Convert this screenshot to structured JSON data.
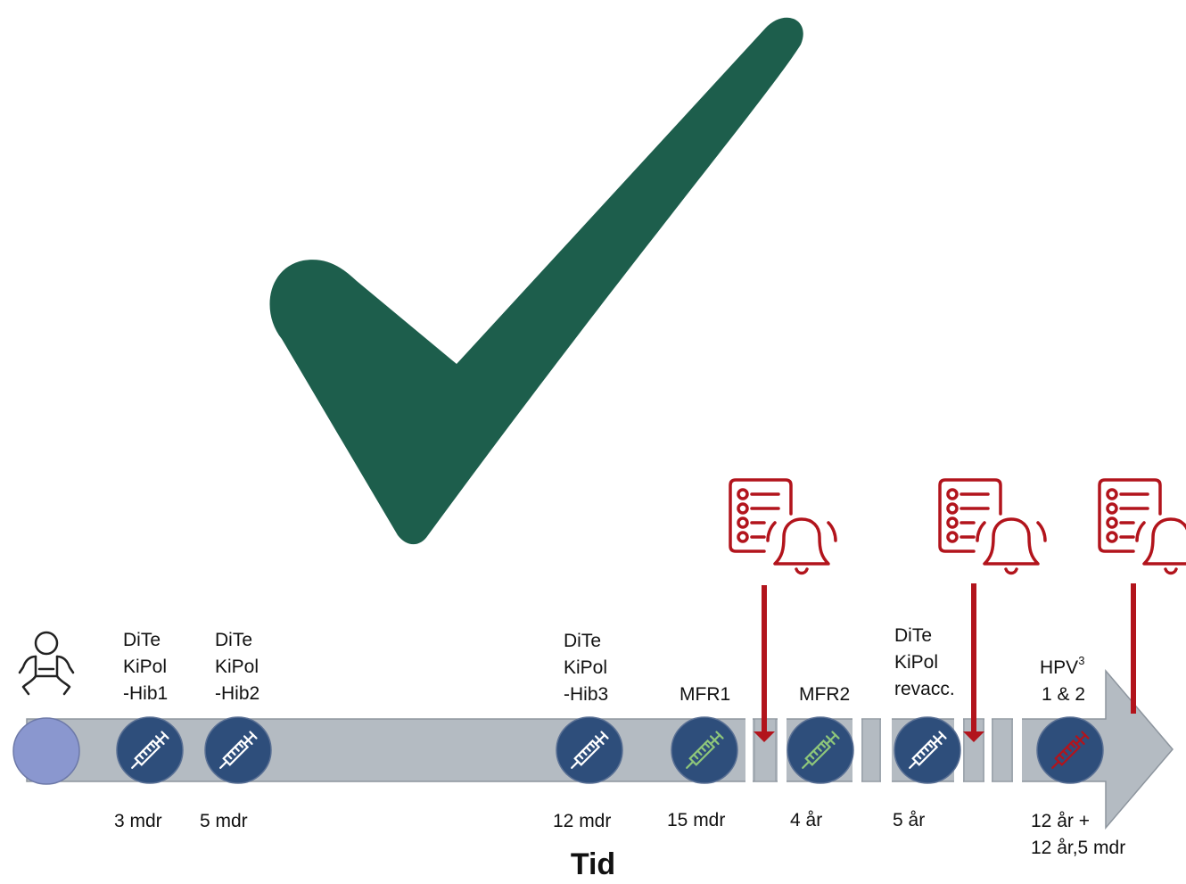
{
  "colors": {
    "check": "#1d5e4c",
    "arrow": "#b4bbc2",
    "arrow_edge": "#8d959e",
    "circle": "#2e4e7b",
    "start_circle": "#8a97cf",
    "reminder": "#b2141c",
    "syringe_white": "#ffffff",
    "syringe_green": "#8ec67a",
    "syringe_red": "#b2141c"
  },
  "icons": {
    "checkmark": "checkmark-icon",
    "baby": "baby-icon",
    "syringe": "syringe-icon",
    "reminder": "reminder-checklist-bell-icon"
  },
  "vaccinations": [
    {
      "id": "v3m",
      "label_lines": [
        "DiTe",
        "KiPol",
        "-Hib1"
      ],
      "age": "3 mdr",
      "syringe": "white"
    },
    {
      "id": "v5m",
      "label_lines": [
        "DiTe",
        "KiPol",
        "-Hib2"
      ],
      "age": "5 mdr",
      "syringe": "white"
    },
    {
      "id": "v12m",
      "label_lines": [
        "DiTe",
        "KiPol",
        "-Hib3"
      ],
      "age": "12 mdr",
      "syringe": "white"
    },
    {
      "id": "v15m",
      "label_lines": [
        "MFR1"
      ],
      "age": "15 mdr",
      "syringe": "green"
    },
    {
      "id": "v4y",
      "label_lines": [
        "MFR2"
      ],
      "age": "4 år",
      "syringe": "green"
    },
    {
      "id": "v5y",
      "label_lines": [
        "DiTe",
        "KiPol",
        "revacc."
      ],
      "age": "5 år",
      "syringe": "white"
    },
    {
      "id": "v12y",
      "label_lines": [
        "HPV",
        "1 & 2"
      ],
      "label_sup": "3",
      "age_lines": [
        "12 år +",
        "12 år,5 mdr"
      ],
      "syringe": "red"
    }
  ],
  "reminders": 3,
  "axis_label": "Tid"
}
